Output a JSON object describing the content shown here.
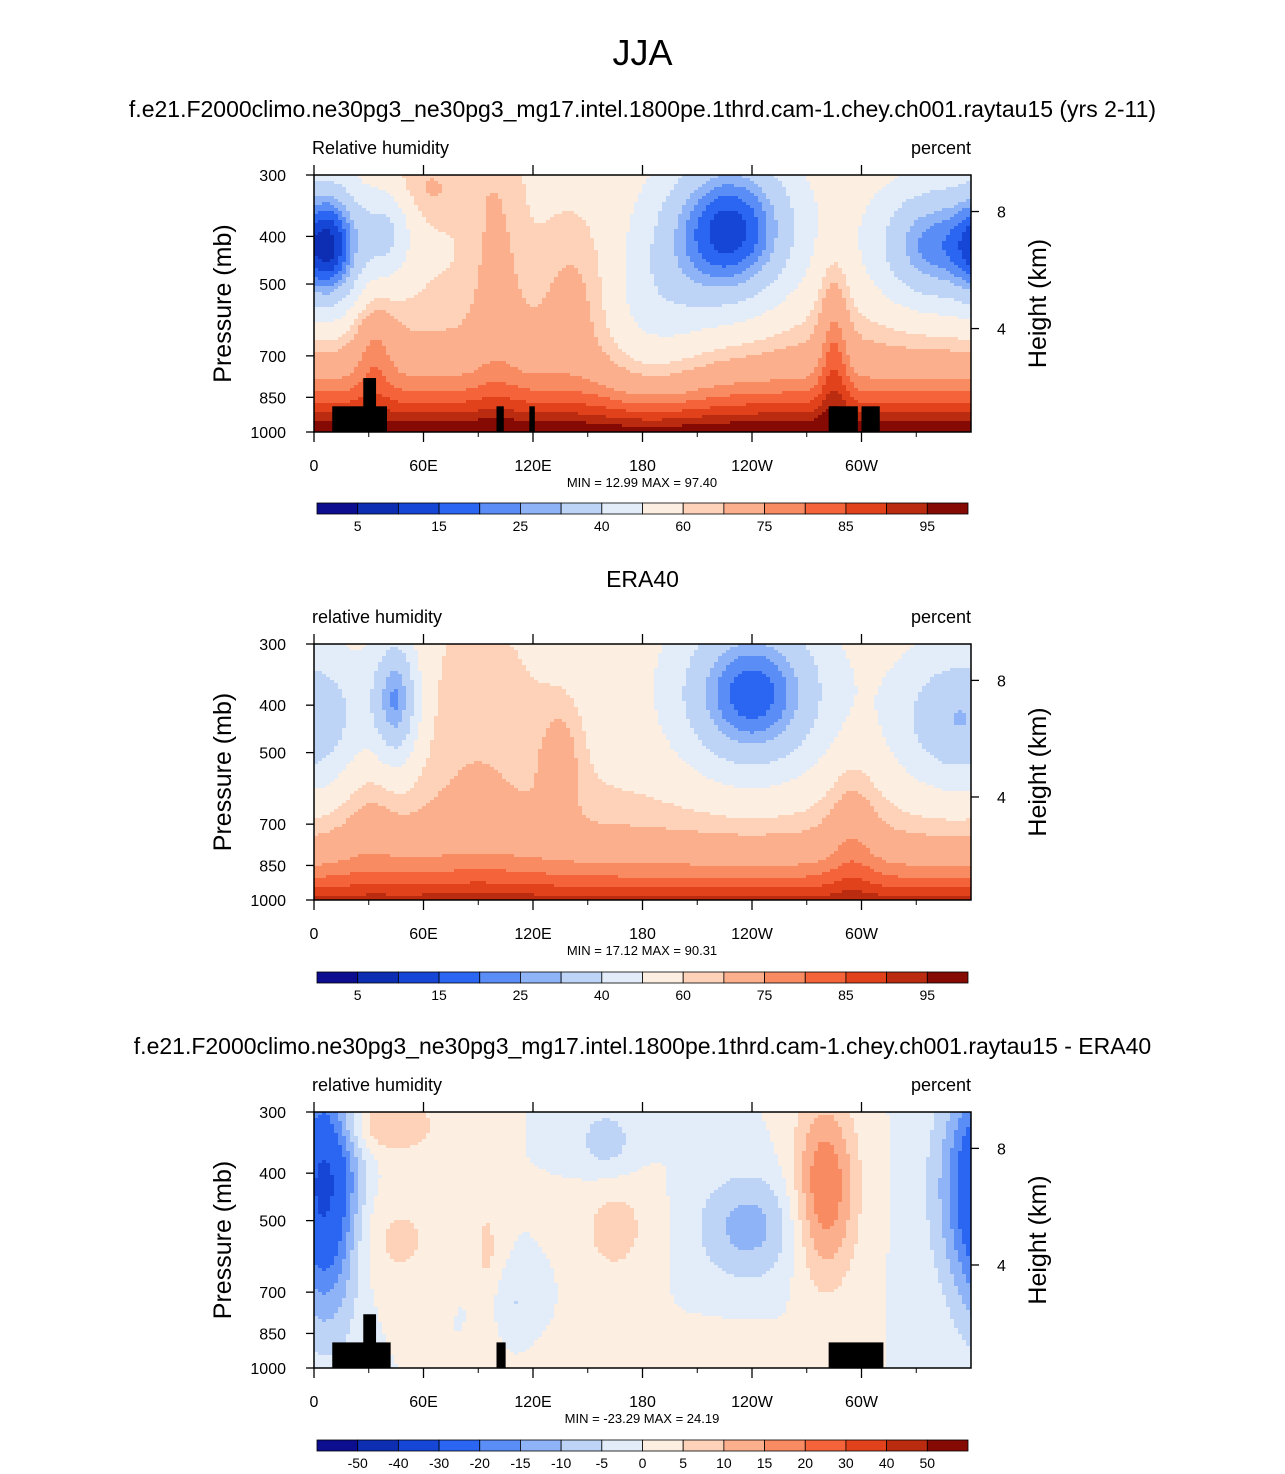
{
  "main_title": "JJA",
  "panel_titles": [
    "f.e21.F2000climo.ne30pg3_ne30pg3_mg17.intel.1800pe.1thrd.cam-1.chey.ch001.raytau15 (yrs 2-11)",
    "ERA40",
    "f.e21.F2000climo.ne30pg3_ne30pg3_mg17.intel.1800pe.1thrd.cam-1.chey.ch001.raytau15 - ERA40"
  ],
  "axes": {
    "ylabel": "Pressure (mb)",
    "ylabel_right": "Height (km)",
    "y_ticks": [
      "300",
      "400",
      "500",
      "700",
      "850",
      "1000"
    ],
    "y_tick_values": [
      300,
      400,
      500,
      700,
      850,
      1000
    ],
    "x_ticks": [
      "0",
      "60E",
      "120E",
      "180",
      "120W",
      "60W"
    ],
    "x_tick_values": [
      0,
      60,
      120,
      180,
      240,
      300
    ],
    "x_range": [
      0,
      360
    ],
    "right_ticks": [
      "8",
      "4"
    ],
    "right_tick_pressures": [
      356,
      616
    ]
  },
  "colors": {
    "rh_palette": [
      "#0d0d8f",
      "#0d2eb3",
      "#1646d6",
      "#2b66f2",
      "#5a8df5",
      "#8fb3f7",
      "#bdd4f7",
      "#e3edfa",
      "#fdeee2",
      "#fdd2b8",
      "#fcaf8c",
      "#f98b63",
      "#f46339",
      "#e2421b",
      "#bb2b10",
      "#860a04"
    ],
    "diff_palette": [
      "#0d0d8f",
      "#0d2eb3",
      "#1646d6",
      "#2b66f2",
      "#5a8df5",
      "#8fb3f7",
      "#bdd4f7",
      "#e3edfa",
      "#fdeee2",
      "#fdd2b8",
      "#fcaf8c",
      "#f98b63",
      "#f46339",
      "#e2421b",
      "#bb2b10",
      "#860a04"
    ],
    "topography": "#000000"
  },
  "chart_data": [
    {
      "type": "heatmap",
      "title": "f.e21.F2000climo.ne30pg3_ne30pg3_mg17.intel.1800pe.1thrd.cam-1.chey.ch001.raytau15 (yrs 2-11)",
      "variable": "Relative humidity",
      "units": "percent",
      "stats": "MIN =  12.99  MAX =  97.40",
      "min": 12.99,
      "max": 97.4,
      "colorbar_labels": [
        "5",
        "15",
        "25",
        "40",
        "60",
        "75",
        "85",
        "95"
      ],
      "colorbar_levels": [
        5,
        10,
        15,
        20,
        25,
        30,
        40,
        50,
        60,
        65,
        75,
        80,
        85,
        90,
        95
      ],
      "has_topography": true,
      "field": "model"
    },
    {
      "type": "heatmap",
      "title": "ERA40",
      "variable": "relative humidity",
      "units": "percent",
      "stats": "MIN =  17.12  MAX =  90.31",
      "min": 17.12,
      "max": 90.31,
      "colorbar_labels": [
        "5",
        "15",
        "25",
        "40",
        "60",
        "75",
        "85",
        "95"
      ],
      "colorbar_levels": [
        5,
        10,
        15,
        20,
        25,
        30,
        40,
        50,
        60,
        65,
        75,
        80,
        85,
        90,
        95
      ],
      "has_topography": false,
      "field": "obs"
    },
    {
      "type": "heatmap",
      "title": "f.e21.F2000climo.ne30pg3_ne30pg3_mg17.intel.1800pe.1thrd.cam-1.chey.ch001.raytau15 - ERA40",
      "variable": "relative humidity",
      "units": "percent",
      "stats": "MIN = -23.29  MAX =  24.19",
      "min": -23.29,
      "max": 24.19,
      "colorbar_labels": [
        "-50",
        "-40",
        "-30",
        "-20",
        "-15",
        "-10",
        "-5",
        "0",
        "5",
        "10",
        "15",
        "20",
        "30",
        "40",
        "50"
      ],
      "colorbar_levels": [
        -50,
        -40,
        -30,
        -20,
        -15,
        -10,
        -5,
        0,
        5,
        10,
        15,
        20,
        30,
        40,
        50
      ],
      "has_topography": true,
      "field": "diff"
    }
  ]
}
